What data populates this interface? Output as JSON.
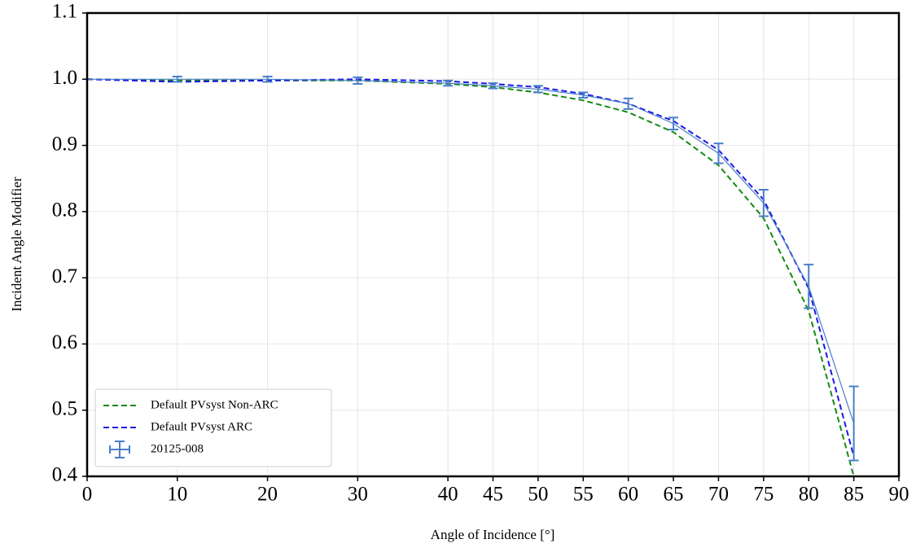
{
  "chart_data": {
    "type": "line",
    "x_label": "Angle of Incidence [°]",
    "y_label": "Incident Angle Modifier",
    "x": [
      0,
      10,
      20,
      30,
      40,
      45,
      50,
      55,
      60,
      65,
      70,
      75,
      80,
      85
    ],
    "series": [
      {
        "name": "Default PVsyst Non-ARC",
        "color": "#138a13",
        "style": "dashed",
        "values": [
          1.0,
          0.998,
          0.998,
          0.998,
          0.993,
          0.988,
          0.98,
          0.968,
          0.95,
          0.92,
          0.87,
          0.79,
          0.65,
          0.4
        ]
      },
      {
        "name": "Default PVsyst ARC",
        "color": "#1a1ae6",
        "style": "dashed",
        "values": [
          1.0,
          0.996,
          0.998,
          1.0,
          0.997,
          0.993,
          0.988,
          0.978,
          0.963,
          0.937,
          0.893,
          0.818,
          0.684,
          0.43
        ]
      },
      {
        "name": "20125-008",
        "color": "#4a7fc9",
        "style": "errorbar",
        "values": [
          1.0,
          1.0,
          1.0,
          0.998,
          0.994,
          0.99,
          0.985,
          0.976,
          0.963,
          0.933,
          0.888,
          0.813,
          0.687,
          0.48
        ],
        "errors": [
          null,
          0.004,
          0.004,
          0.005,
          0.004,
          0.004,
          0.005,
          0.004,
          0.008,
          0.009,
          0.015,
          0.02,
          0.033,
          0.056
        ]
      }
    ],
    "xlim": [
      0,
      90
    ],
    "xticks": [
      0,
      10,
      20,
      30,
      40,
      45,
      50,
      55,
      60,
      65,
      70,
      75,
      80,
      85,
      90
    ],
    "ylim": [
      0.4,
      1.1
    ],
    "yticks": [
      0.4,
      0.5,
      0.6,
      0.7,
      0.8,
      0.9,
      {
        "value": 1,
        "label": "1.0"
      },
      1.1
    ],
    "grid": true,
    "legend": "lower left"
  }
}
